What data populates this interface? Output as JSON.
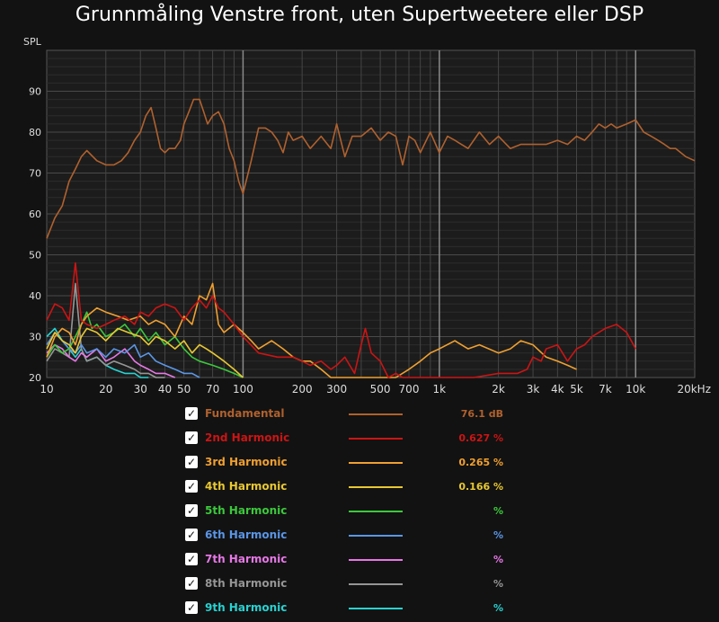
{
  "title": "Grunnmåling Venstre front, uten Supertweetere eller DSP",
  "chart_data": {
    "type": "line",
    "ylabel": "SPL",
    "xscale": "log",
    "xlim": [
      10,
      20000
    ],
    "ylim": [
      20,
      100
    ],
    "x_tick_labels": [
      {
        "v": 10,
        "label": "10"
      },
      {
        "v": 20,
        "label": "20"
      },
      {
        "v": 30,
        "label": "30"
      },
      {
        "v": 40,
        "label": "40"
      },
      {
        "v": 50,
        "label": "50"
      },
      {
        "v": 70,
        "label": "70"
      },
      {
        "v": 100,
        "label": "100"
      },
      {
        "v": 200,
        "label": "200"
      },
      {
        "v": 300,
        "label": "300"
      },
      {
        "v": 500,
        "label": "500"
      },
      {
        "v": 700,
        "label": "700"
      },
      {
        "v": 1000,
        "label": "1k"
      },
      {
        "v": 2000,
        "label": "2k"
      },
      {
        "v": 3000,
        "label": "3k"
      },
      {
        "v": 4000,
        "label": "4k"
      },
      {
        "v": 5000,
        "label": "5k"
      },
      {
        "v": 7000,
        "label": "7k"
      },
      {
        "v": 10000,
        "label": "10k"
      },
      {
        "v": 20000,
        "label": "20kHz"
      }
    ],
    "y_ticks": [
      20,
      30,
      40,
      50,
      60,
      70,
      80,
      90
    ],
    "grid": true,
    "series": [
      {
        "name": "Fundamental",
        "color": "#b0612e",
        "value": "76.1 dB",
        "x": [
          10,
          11,
          12,
          13,
          14,
          15,
          16,
          18,
          20,
          22,
          24,
          26,
          28,
          30,
          32,
          34,
          36,
          38,
          40,
          42,
          45,
          48,
          50,
          53,
          56,
          60,
          63,
          66,
          70,
          75,
          80,
          85,
          90,
          95,
          100,
          105,
          110,
          120,
          130,
          140,
          150,
          160,
          170,
          180,
          200,
          220,
          250,
          280,
          300,
          330,
          360,
          400,
          450,
          500,
          550,
          600,
          650,
          700,
          750,
          800,
          900,
          1000,
          1100,
          1200,
          1400,
          1600,
          1800,
          2000,
          2300,
          2600,
          3000,
          3500,
          4000,
          4500,
          5000,
          5500,
          6000,
          6500,
          7000,
          7500,
          8000,
          9000,
          10000,
          11000,
          12000,
          13000,
          14000,
          15000,
          16000,
          18000,
          20000
        ],
        "y": [
          54,
          59,
          62,
          68,
          71,
          74,
          75.5,
          73,
          72,
          72,
          73,
          75,
          78,
          80,
          84,
          86,
          81,
          76,
          75,
          76,
          76,
          78,
          82,
          85,
          88,
          88,
          85,
          82,
          84,
          85,
          82,
          76,
          73,
          68,
          65,
          69,
          73,
          81,
          81,
          80,
          78,
          75,
          80,
          78,
          79,
          76,
          79,
          76,
          82,
          74,
          79,
          79,
          81,
          78,
          80,
          79,
          72,
          79,
          78,
          75,
          80,
          75,
          79,
          78,
          76,
          80,
          77,
          79,
          76,
          77,
          77,
          77,
          78,
          77,
          79,
          78,
          80,
          82,
          81,
          82,
          81,
          82,
          83,
          80,
          79,
          78,
          77,
          76,
          76,
          74,
          73
        ]
      },
      {
        "name": "2nd Harmonic",
        "color": "#cc1414",
        "value": "0.627 %",
        "x": [
          10,
          11,
          12,
          13,
          14,
          15,
          16,
          18,
          20,
          22,
          25,
          28,
          30,
          33,
          36,
          40,
          45,
          50,
          55,
          60,
          65,
          70,
          75,
          80,
          90,
          100,
          120,
          150,
          180,
          200,
          220,
          250,
          280,
          300,
          330,
          370,
          400,
          420,
          450,
          500,
          550,
          600,
          650,
          700,
          800,
          1000,
          1500,
          2000,
          2500,
          2800,
          3000,
          3300,
          3500,
          4000,
          4500,
          5000,
          5500,
          6000,
          7000,
          8000,
          9000,
          10000
        ],
        "y": [
          34,
          38,
          37,
          34,
          48,
          34,
          33,
          32,
          33,
          34,
          35,
          33,
          36,
          35,
          37,
          38,
          37,
          34,
          37,
          39,
          37,
          40,
          37,
          36,
          33,
          30,
          26,
          25,
          25,
          24,
          23,
          24,
          22,
          23,
          25,
          21,
          28,
          32,
          26,
          24,
          20,
          21,
          20,
          20,
          20,
          20,
          20,
          21,
          21,
          22,
          25,
          24,
          27,
          28,
          24,
          27,
          28,
          30,
          32,
          33,
          31,
          27
        ]
      },
      {
        "name": "3rd Harmonic",
        "color": "#f0a030",
        "value": "0.265 %",
        "x": [
          10,
          11,
          12,
          13,
          14,
          15,
          16,
          18,
          20,
          23,
          26,
          30,
          33,
          36,
          40,
          45,
          50,
          55,
          60,
          65,
          70,
          75,
          80,
          90,
          100,
          110,
          120,
          140,
          160,
          180,
          200,
          220,
          250,
          280,
          300,
          350,
          400,
          450,
          500,
          600,
          700,
          800,
          900,
          1000,
          1200,
          1400,
          1600,
          2000,
          2300,
          2600,
          3000,
          3500,
          4000,
          4500,
          5000
        ],
        "y": [
          25,
          30,
          32,
          31,
          28,
          33,
          35,
          37,
          36,
          35,
          34,
          35,
          33,
          34,
          33,
          30,
          35,
          33,
          40,
          39,
          43,
          33,
          31,
          33,
          31,
          29,
          27,
          29,
          27,
          25,
          24,
          24,
          22,
          20,
          20,
          20,
          20,
          20,
          20,
          20,
          22,
          24,
          26,
          27,
          29,
          27,
          28,
          26,
          27,
          29,
          28,
          25,
          24,
          23,
          22
        ]
      },
      {
        "name": "4th Harmonic",
        "color": "#e8c832",
        "value": "0.166 %",
        "x": [
          10,
          11,
          12,
          13,
          14,
          15,
          16,
          18,
          20,
          23,
          26,
          30,
          33,
          36,
          40,
          45,
          50,
          55,
          60,
          65,
          70,
          75,
          80,
          90,
          100
        ],
        "y": [
          27,
          31,
          29,
          28,
          26,
          30,
          32,
          31,
          29,
          32,
          31,
          30,
          28,
          30,
          29,
          27,
          29,
          26,
          28,
          27,
          26,
          25,
          24,
          22,
          20
        ]
      },
      {
        "name": "5th Harmonic",
        "color": "#3cc83c",
        "value": "%",
        "x": [
          10,
          11,
          12,
          13,
          14,
          15,
          16,
          17,
          18,
          20,
          22,
          25,
          28,
          30,
          33,
          36,
          40,
          45,
          50,
          55,
          60,
          70,
          80,
          90,
          100
        ],
        "y": [
          25,
          28,
          26,
          27,
          30,
          33,
          36,
          32,
          33,
          30,
          31,
          33,
          30,
          32,
          29,
          31,
          28,
          30,
          27,
          25,
          24,
          23,
          22,
          21,
          20
        ]
      },
      {
        "name": "6th Harmonic",
        "color": "#5a96e6",
        "value": "%",
        "x": [
          10,
          11,
          12,
          13,
          14,
          15,
          16,
          18,
          20,
          22,
          25,
          28,
          30,
          33,
          36,
          40,
          45,
          50,
          55,
          60
        ],
        "y": [
          28,
          31,
          29,
          27,
          26,
          28,
          26,
          27,
          25,
          27,
          26,
          28,
          25,
          26,
          24,
          23,
          22,
          21,
          21,
          20
        ]
      },
      {
        "name": "7th Harmonic",
        "color": "#e678e6",
        "value": "%",
        "x": [
          10,
          11,
          12,
          13,
          14,
          15,
          16,
          18,
          20,
          22,
          25,
          28,
          30,
          33,
          36,
          40,
          45
        ],
        "y": [
          26,
          28,
          27,
          25,
          24,
          26,
          25,
          27,
          24,
          25,
          27,
          24,
          23,
          22,
          21,
          21,
          20
        ]
      },
      {
        "name": "8th Harmonic",
        "color": "#969696",
        "value": "%",
        "x": [
          10,
          11,
          12,
          13,
          14,
          15,
          16,
          18,
          20,
          22,
          25,
          28,
          30,
          33,
          36,
          40
        ],
        "y": [
          24,
          27,
          26,
          25,
          43,
          27,
          24,
          25,
          23,
          24,
          23,
          22,
          21,
          21,
          20,
          20
        ]
      },
      {
        "name": "9th Harmonic",
        "color": "#28d2d2",
        "value": "%",
        "x": [
          10,
          11,
          12,
          13,
          14,
          15,
          16,
          18,
          20,
          22,
          25,
          28,
          30,
          33
        ],
        "y": [
          30,
          32,
          29,
          27,
          25,
          27,
          24,
          25,
          23,
          22,
          21,
          21,
          20,
          20
        ]
      }
    ]
  }
}
